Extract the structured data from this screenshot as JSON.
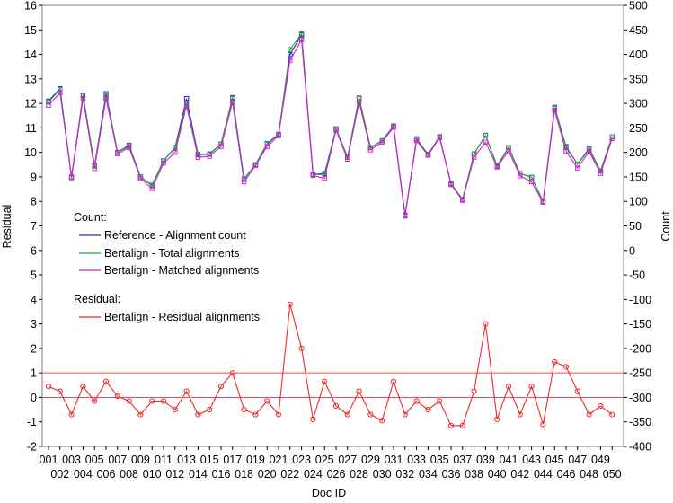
{
  "chart_data": {
    "type": "line",
    "xlabel": "Doc ID",
    "ylabel_left": "Residual",
    "ylabel_right": "Count",
    "ylim_left": [
      -2,
      16
    ],
    "ylim_right": [
      -400,
      500
    ],
    "yticks_left": [
      -2,
      -1,
      0,
      1,
      2,
      3,
      4,
      5,
      6,
      7,
      8,
      9,
      10,
      11,
      12,
      13,
      14,
      15,
      16
    ],
    "yticks_right": [
      -400,
      -350,
      -300,
      -250,
      -200,
      -150,
      -100,
      -50,
      0,
      50,
      100,
      150,
      200,
      250,
      300,
      350,
      400,
      450,
      500
    ],
    "categories": [
      "001",
      "002",
      "003",
      "004",
      "005",
      "006",
      "007",
      "008",
      "009",
      "010",
      "011",
      "012",
      "013",
      "014",
      "015",
      "016",
      "017",
      "018",
      "019",
      "020",
      "021",
      "022",
      "023",
      "024",
      "025",
      "026",
      "027",
      "028",
      "029",
      "030",
      "031",
      "032",
      "033",
      "034",
      "035",
      "036",
      "037",
      "038",
      "039",
      "040",
      "041",
      "042",
      "043",
      "044",
      "045",
      "046",
      "047",
      "048",
      "049",
      "050"
    ],
    "reference_lines_left": [
      0,
      1
    ],
    "legend_groups": [
      {
        "title": "Count:",
        "entries": [
          "Reference - Alignment count",
          "Bertalign - Total alignments",
          "Bertalign - Matched alignments"
        ]
      },
      {
        "title": "Residual:",
        "entries": [
          "Bertalign - Residual alignments"
        ]
      }
    ],
    "series": [
      {
        "name": "Reference - Alignment count",
        "axis": "right",
        "color": "#2a2ad0",
        "values": [
          305,
          330,
          150,
          317,
          173,
          320,
          200,
          215,
          150,
          133,
          183,
          210,
          310,
          196,
          197,
          217,
          312,
          146,
          175,
          218,
          237,
          400,
          440,
          155,
          157,
          248,
          190,
          311,
          210,
          224,
          254,
          72,
          228,
          196,
          232,
          136,
          104,
          197,
          235,
          172,
          210,
          157,
          149,
          100,
          292,
          212,
          176,
          208,
          162,
          232
        ]
      },
      {
        "name": "Bertalign - Total alignments",
        "axis": "right",
        "color": "#2b9a3a",
        "values": [
          303,
          328,
          150,
          315,
          172,
          316,
          200,
          213,
          150,
          132,
          183,
          209,
          300,
          195,
          196,
          217,
          310,
          145,
          175,
          217,
          236,
          410,
          442,
          155,
          155,
          248,
          190,
          310,
          210,
          224,
          253,
          70,
          227,
          196,
          231,
          136,
          104,
          197,
          235,
          173,
          210,
          157,
          149,
          100,
          290,
          210,
          176,
          206,
          162,
          232
        ]
      },
      {
        "name": "Bertalign - Matched alignments",
        "axis": "right",
        "color": "#d21fd6",
        "values": [
          296,
          322,
          148,
          310,
          167,
          310,
          197,
          210,
          147,
          126,
          178,
          200,
          295,
          190,
          192,
          212,
          302,
          140,
          173,
          212,
          234,
          388,
          430,
          153,
          147,
          245,
          186,
          303,
          205,
          221,
          251,
          70,
          224,
          194,
          230,
          134,
          102,
          190,
          221,
          170,
          203,
          152,
          140,
          98,
          286,
          202,
          168,
          202,
          157,
          228
        ]
      },
      {
        "name": "Bertalign - Residual alignments",
        "axis": "left",
        "color": "#ee2b2b",
        "values": [
          0.45,
          0.25,
          -0.7,
          0.45,
          -0.15,
          0.65,
          0.05,
          -0.15,
          -0.7,
          -0.15,
          -0.15,
          -0.5,
          0.25,
          -0.7,
          -0.5,
          0.45,
          1.0,
          -0.5,
          -0.7,
          -0.15,
          -0.7,
          3.8,
          2.0,
          -0.9,
          0.65,
          -0.35,
          -0.7,
          0.25,
          -0.7,
          -0.95,
          0.65,
          -0.7,
          -0.15,
          -0.5,
          -0.15,
          -1.15,
          -1.15,
          0.25,
          3.0,
          -0.9,
          0.45,
          -0.7,
          0.45,
          -1.1,
          1.45,
          1.25,
          0.25,
          -0.7,
          -0.35,
          -0.7
        ]
      }
    ]
  }
}
